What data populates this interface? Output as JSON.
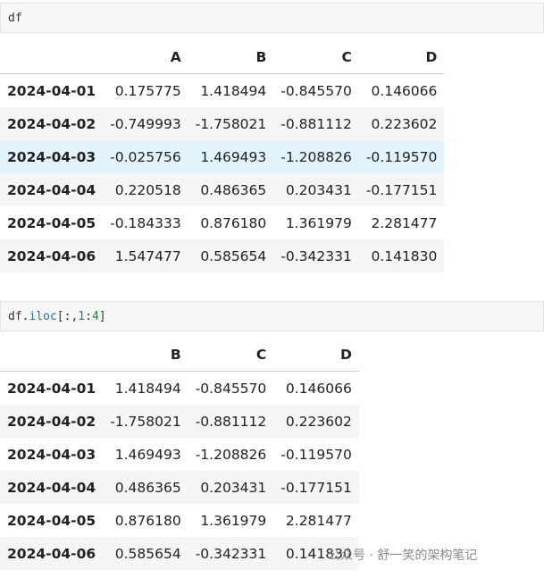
{
  "cells": [
    {
      "code": "df",
      "table": {
        "columns": [
          "A",
          "B",
          "C",
          "D"
        ],
        "rows": [
          {
            "index": "2024-04-01",
            "values": [
              "0.175775",
              "1.418494",
              "-0.845570",
              "0.146066"
            ]
          },
          {
            "index": "2024-04-02",
            "values": [
              "-0.749993",
              "-1.758021",
              "-0.881112",
              "0.223602"
            ]
          },
          {
            "index": "2024-04-03",
            "values": [
              "-0.025756",
              "1.469493",
              "-1.208826",
              "-0.119570"
            ]
          },
          {
            "index": "2024-04-04",
            "values": [
              "0.220518",
              "0.486365",
              "0.203431",
              "-0.177151"
            ]
          },
          {
            "index": "2024-04-05",
            "values": [
              "-0.184333",
              "0.876180",
              "1.361979",
              "2.281477"
            ]
          },
          {
            "index": "2024-04-06",
            "values": [
              "1.547477",
              "0.585654",
              "-0.342331",
              "0.141830"
            ]
          }
        ]
      }
    },
    {
      "code": "df.iloc[:,1:4]",
      "table": {
        "columns": [
          "B",
          "C",
          "D"
        ],
        "rows": [
          {
            "index": "2024-04-01",
            "values": [
              "1.418494",
              "-0.845570",
              "0.146066"
            ]
          },
          {
            "index": "2024-04-02",
            "values": [
              "-1.758021",
              "-0.881112",
              "0.223602"
            ]
          },
          {
            "index": "2024-04-03",
            "values": [
              "1.469493",
              "-1.208826",
              "-0.119570"
            ]
          },
          {
            "index": "2024-04-04",
            "values": [
              "0.486365",
              "0.203431",
              "-0.177151"
            ]
          },
          {
            "index": "2024-04-05",
            "values": [
              "0.876180",
              "1.361979",
              "2.281477"
            ]
          },
          {
            "index": "2024-04-06",
            "values": [
              "0.585654",
              "-0.342331",
              "0.141830"
            ]
          }
        ]
      }
    }
  ],
  "watermark": "公众号 · 舒一笑的架构笔记"
}
